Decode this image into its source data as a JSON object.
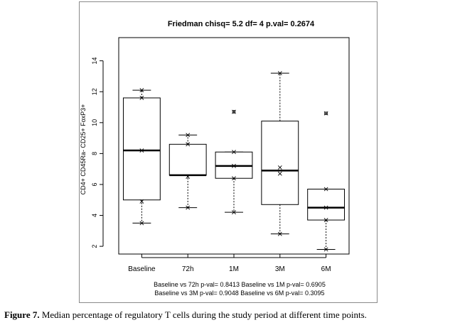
{
  "chart_data": {
    "type": "box",
    "title": "Friedman chisq= 5.2  df= 4  p.val= 0.2674",
    "ylabel": "CD4+ CD45Ra- CD25+ FoxP3+",
    "xlabel": "",
    "categories": [
      "Baseline",
      "72h",
      "1M",
      "3M",
      "6M"
    ],
    "yticks": [
      2,
      4,
      6,
      8,
      10,
      12,
      14
    ],
    "ylim": [
      1.5,
      15.5
    ],
    "grid": false,
    "boxes": [
      {
        "category": "Baseline",
        "whisker_low": 3.5,
        "q1": 5.0,
        "median": 8.2,
        "q3": 11.6,
        "whisker_high": 12.1,
        "outliers": []
      },
      {
        "category": "72h",
        "whisker_low": 4.5,
        "q1": 6.6,
        "median": 6.6,
        "q3": 8.6,
        "whisker_high": 9.2,
        "outliers": []
      },
      {
        "category": "1M",
        "whisker_low": 4.2,
        "q1": 6.4,
        "median": 7.2,
        "q3": 8.1,
        "whisker_high": 8.1,
        "outliers": [
          10.7
        ]
      },
      {
        "category": "3M",
        "whisker_low": 2.8,
        "q1": 4.7,
        "median": 6.9,
        "q3": 10.1,
        "whisker_high": 13.2,
        "outliers": []
      },
      {
        "category": "6M",
        "whisker_low": 1.8,
        "q1": 3.7,
        "median": 4.5,
        "q3": 5.7,
        "whisker_high": 5.7,
        "outliers": [
          10.6
        ]
      }
    ],
    "points": [
      {
        "category": "Baseline",
        "values": [
          3.5,
          4.9,
          8.2,
          11.6,
          12.1
        ]
      },
      {
        "category": "72h",
        "values": [
          4.5,
          6.5,
          8.6,
          9.2
        ]
      },
      {
        "category": "1M",
        "values": [
          4.2,
          6.4,
          7.2,
          8.1,
          10.7
        ]
      },
      {
        "category": "3M",
        "values": [
          2.8,
          6.7,
          7.1,
          13.2
        ]
      },
      {
        "category": "6M",
        "values": [
          1.8,
          3.7,
          4.5,
          5.7,
          10.6
        ]
      }
    ],
    "annotations": [
      "Baseline vs 72h p-val= 0.8413  Baseline vs 1M p-val= 0.6905",
      "Baseline vs 3M p-val= 0.9048  Baseline vs 6M p-val= 0.3095"
    ]
  },
  "caption": {
    "label": "Figure 7.",
    "text": " Median percentage of regulatory T cells during the study period at different time points."
  }
}
